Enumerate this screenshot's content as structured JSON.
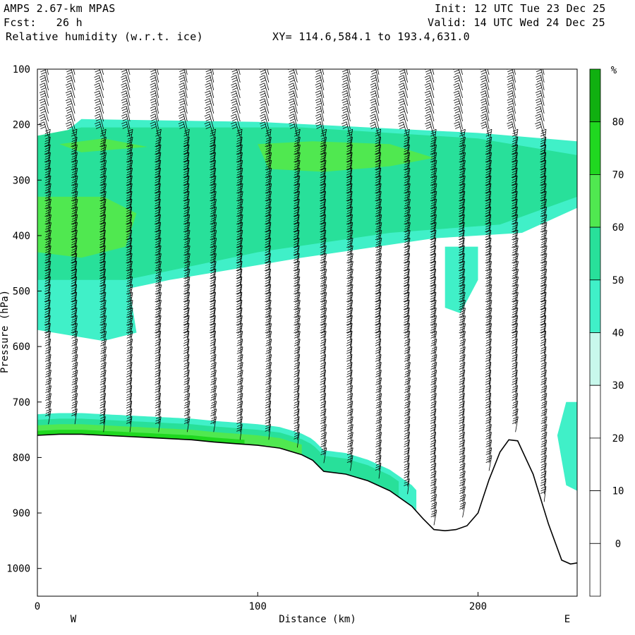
{
  "header": {
    "model": "AMPS 2.67-km MPAS",
    "fcst": "Fcst:   26 h",
    "init": "Init: 12 UTC Tue 23 Dec 25",
    "valid": "Valid: 14 UTC Wed 24 Dec 25",
    "field": "Relative humidity (w.r.t. ice)",
    "xy": "XY= 114.6,584.1 to 193.4,631.0"
  },
  "chart_data": {
    "type": "heatmap",
    "title": "Relative humidity (w.r.t. ice)",
    "xlabel": "Distance (km)",
    "ylabel": "Pressure (hPa)",
    "xlim": [
      0,
      245
    ],
    "ylim": [
      1050,
      100
    ],
    "x_ticks": [
      0,
      100,
      200
    ],
    "y_ticks": [
      100,
      200,
      300,
      400,
      500,
      600,
      700,
      800,
      900,
      1000
    ],
    "direction_labels": {
      "left": "W",
      "right": "E"
    },
    "colorbar": {
      "unit": "%",
      "levels": [
        0,
        10,
        20,
        30,
        40,
        50,
        60,
        70,
        80
      ],
      "colors": [
        "#ffffff",
        "#ffffff",
        "#ffffff",
        "#ffffff",
        "#c8f8ec",
        "#40f0c8",
        "#28e09a",
        "#50e850",
        "#20d820",
        "#10b010"
      ]
    },
    "terrain_hpa": [
      [
        0,
        760
      ],
      [
        10,
        758
      ],
      [
        20,
        758
      ],
      [
        30,
        760
      ],
      [
        40,
        762
      ],
      [
        50,
        764
      ],
      [
        60,
        766
      ],
      [
        70,
        768
      ],
      [
        80,
        772
      ],
      [
        90,
        775
      ],
      [
        100,
        778
      ],
      [
        110,
        783
      ],
      [
        120,
        795
      ],
      [
        125,
        805
      ],
      [
        130,
        825
      ],
      [
        140,
        830
      ],
      [
        150,
        842
      ],
      [
        160,
        860
      ],
      [
        170,
        888
      ],
      [
        175,
        910
      ],
      [
        180,
        930
      ],
      [
        185,
        932
      ],
      [
        190,
        930
      ],
      [
        195,
        923
      ],
      [
        200,
        900
      ],
      [
        205,
        840
      ],
      [
        210,
        790
      ],
      [
        214,
        768
      ],
      [
        218,
        770
      ],
      [
        225,
        830
      ],
      [
        232,
        920
      ],
      [
        238,
        985
      ],
      [
        242,
        992
      ],
      [
        245,
        990
      ]
    ],
    "rh_regions": [
      {
        "level": 40,
        "band": [
          [
            0,
            255
          ],
          [
            0,
            500
          ],
          [
            30,
            505
          ],
          [
            60,
            480
          ],
          [
            120,
            440
          ],
          [
            180,
            405
          ],
          [
            220,
            395
          ],
          [
            245,
            350
          ],
          [
            245,
            230
          ],
          [
            200,
            215
          ],
          [
            100,
            195
          ],
          [
            20,
            190
          ]
        ]
      },
      {
        "level": 40,
        "band": [
          [
            25,
            440
          ],
          [
            0,
            460
          ],
          [
            0,
            570
          ],
          [
            30,
            590
          ],
          [
            45,
            575
          ],
          [
            40,
            450
          ]
        ]
      },
      {
        "level": 40,
        "band": [
          [
            185,
            420
          ],
          [
            185,
            530
          ],
          [
            192,
            540
          ],
          [
            200,
            480
          ],
          [
            200,
            420
          ]
        ]
      },
      {
        "level": 40,
        "band": [
          [
            240,
            700
          ],
          [
            236,
            760
          ],
          [
            240,
            850
          ],
          [
            245,
            860
          ],
          [
            245,
            700
          ]
        ]
      },
      {
        "level": 50,
        "band": [
          [
            0,
            220
          ],
          [
            0,
            480
          ],
          [
            40,
            480
          ],
          [
            100,
            430
          ],
          [
            160,
            395
          ],
          [
            210,
            380
          ],
          [
            245,
            330
          ],
          [
            245,
            255
          ],
          [
            200,
            225
          ],
          [
            120,
            205
          ],
          [
            20,
            205
          ]
        ]
      },
      {
        "level": 60,
        "band": [
          [
            0,
            330
          ],
          [
            0,
            430
          ],
          [
            20,
            440
          ],
          [
            40,
            420
          ],
          [
            45,
            360
          ],
          [
            30,
            330
          ]
        ]
      },
      {
        "level": 60,
        "band": [
          [
            100,
            235
          ],
          [
            105,
            280
          ],
          [
            130,
            285
          ],
          [
            160,
            275
          ],
          [
            180,
            260
          ],
          [
            160,
            235
          ],
          [
            125,
            230
          ]
        ]
      },
      {
        "level": 60,
        "band": [
          [
            10,
            235
          ],
          [
            20,
            250
          ],
          [
            50,
            240
          ],
          [
            30,
            225
          ]
        ]
      }
    ],
    "surface_rh": [
      {
        "level": 40,
        "from_km": 0,
        "to_km": 172,
        "depth_hpa": 38
      },
      {
        "level": 50,
        "from_km": 0,
        "to_km": 165,
        "depth_hpa": 28
      },
      {
        "level": 60,
        "from_km": 0,
        "to_km": 120,
        "depth_hpa": 18
      },
      {
        "level": 70,
        "from_km": 0,
        "to_km": 95,
        "depth_hpa": 8
      }
    ],
    "wind_columns_km": [
      5,
      17,
      30,
      42,
      55,
      68,
      80,
      92,
      105,
      118,
      130,
      142,
      155,
      168,
      180,
      193,
      205,
      217,
      230
    ],
    "barbs": "many wind barbs along vertical columns from 100 hPa to the surface; speed increasing with altitude"
  }
}
